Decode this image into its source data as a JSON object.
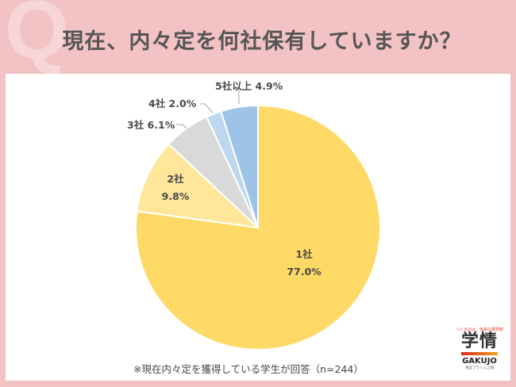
{
  "header": {
    "q_mark": "Q",
    "title": "現在、内々定を何社保有していますか？"
  },
  "chart_data": {
    "type": "pie",
    "title": "現在、内々定を何社保有していますか？",
    "categories": [
      "1社",
      "2社",
      "3社",
      "4社",
      "5社以上"
    ],
    "values": [
      77.0,
      9.8,
      6.1,
      2.0,
      4.9
    ],
    "unit": "%",
    "colors": [
      "#ffd966",
      "#ffe699",
      "#d9d9d9",
      "#bdd7ee",
      "#9dc3e6"
    ],
    "labels": [
      "1社\n77.0%",
      "2社\n9.8%",
      "3社 6.1%",
      "4社 2.0%",
      "5社以上 4.9%"
    ],
    "start_angle": "12 o'clock, clockwise",
    "legend": "none (data labels)",
    "note": "※現在内々定を獲得している学生が回答（n=244）"
  },
  "labels": {
    "s1_name": "1社",
    "s1_pct": "77.0%",
    "s2_name": "2社",
    "s2_pct": "9.8%",
    "s3": "3社 6.1%",
    "s4": "4社 2.0%",
    "s5": "5社以上 4.9%"
  },
  "footer": {
    "note": "※現在内々定を獲得している学生が回答（n=244）"
  },
  "logo": {
    "tagline": "つくるのは、未来の選択肢",
    "kanji": "学情",
    "roman": "GAKUJO",
    "sub": "東証プライム上場"
  }
}
